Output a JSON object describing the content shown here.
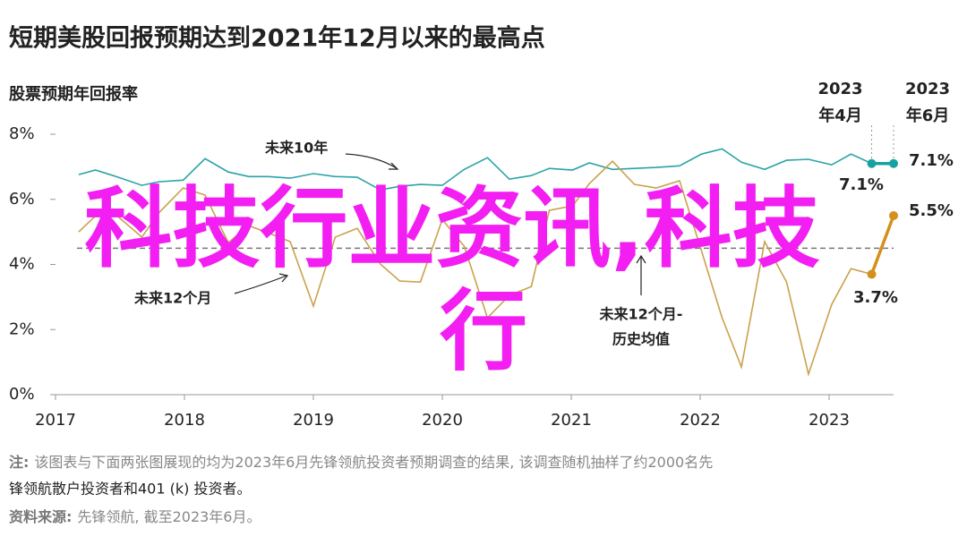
{
  "chart_data": {
    "type": "line",
    "title": "短期美股回报预期达到2021年12月以来的最高点",
    "subtitle": "股票预期年回报率",
    "x": [
      2017.18,
      2017.31,
      2017.47,
      2017.67,
      2017.8,
      2017.99,
      2018.16,
      2018.34,
      2018.5,
      2018.65,
      2018.82,
      2019.0,
      2019.17,
      2019.34,
      2019.52,
      2019.67,
      2019.83,
      2020.0,
      2020.17,
      2020.35,
      2020.52,
      2020.69,
      2020.83,
      2021.01,
      2021.14,
      2021.32,
      2021.49,
      2021.66,
      2021.84,
      2022.01,
      2022.17,
      2022.32,
      2022.5,
      2022.67,
      2022.84,
      2023.02,
      2023.17,
      2023.33,
      2023.5
    ],
    "series": [
      {
        "name": "未来10年",
        "color": "#2aa3a6",
        "highlight_color": "#16a3a0",
        "values": [
          6.76,
          6.9,
          6.7,
          6.43,
          6.54,
          6.59,
          7.25,
          6.84,
          6.7,
          6.7,
          6.65,
          6.79,
          6.7,
          6.68,
          6.29,
          6.4,
          6.46,
          6.43,
          6.92,
          7.28,
          6.62,
          6.73,
          6.95,
          6.9,
          7.12,
          6.92,
          6.95,
          6.98,
          7.03,
          7.39,
          7.55,
          7.14,
          6.92,
          7.2,
          7.23,
          7.06,
          7.39,
          7.1,
          7.1
        ]
      },
      {
        "name": "未来12个月",
        "color": "#c9a24c",
        "highlight_color": "#d4901c",
        "values": [
          5.0,
          5.49,
          5.52,
          4.84,
          5.58,
          6.35,
          6.13,
          4.67,
          5.19,
          4.97,
          4.7,
          2.72,
          4.84,
          5.11,
          4.01,
          3.49,
          3.46,
          5.38,
          4.56,
          2.36,
          3.05,
          3.32,
          5.66,
          5.8,
          6.48,
          7.17,
          6.46,
          6.35,
          6.57,
          4.42,
          2.36,
          0.85,
          4.7,
          3.46,
          0.63,
          2.77,
          3.87,
          3.7,
          5.5
        ]
      }
    ],
    "reference_line": {
      "name": "未来12个月-历史均值",
      "label_lines": [
        "未来12个月-",
        "历史均值"
      ],
      "value": 4.5,
      "color": "#777777"
    },
    "date_markers": [
      {
        "x": 2023.33,
        "label_lines": [
          "2023",
          "年4月"
        ]
      },
      {
        "x": 2023.5,
        "label_lines": [
          "2023",
          "年6月"
        ]
      }
    ],
    "end_labels": [
      "7.1%",
      "7.1%",
      "5.5%",
      "3.7%"
    ],
    "xlim": [
      2017,
      2023.5
    ],
    "xticks": [
      2017,
      2018,
      2019,
      2020,
      2021,
      2022,
      2023
    ],
    "ylim": [
      0,
      8
    ],
    "yticks": [
      {
        "value": 0,
        "label": "0%"
      },
      {
        "value": 2,
        "label": "2%"
      },
      {
        "value": 4,
        "label": "4%"
      },
      {
        "value": 6,
        "label": "6%"
      },
      {
        "value": 8,
        "label": "8%"
      }
    ],
    "grid": false
  },
  "watermark": {
    "lines": [
      "科技行业资讯,科技",
      "行"
    ],
    "color": "#f21ef2"
  },
  "notes": {
    "note_label": "注:",
    "note_lines": [
      "该图表与下面两张图展现的均为2023年6月先锋领航投资者预期调查的结果, 该调查随机抽样了约2000名先",
      "锋领航散户投资者和401 (k) 投资者。"
    ],
    "source_label": "资料来源:",
    "source_text": "先锋领航, 截至2023年6月。"
  }
}
